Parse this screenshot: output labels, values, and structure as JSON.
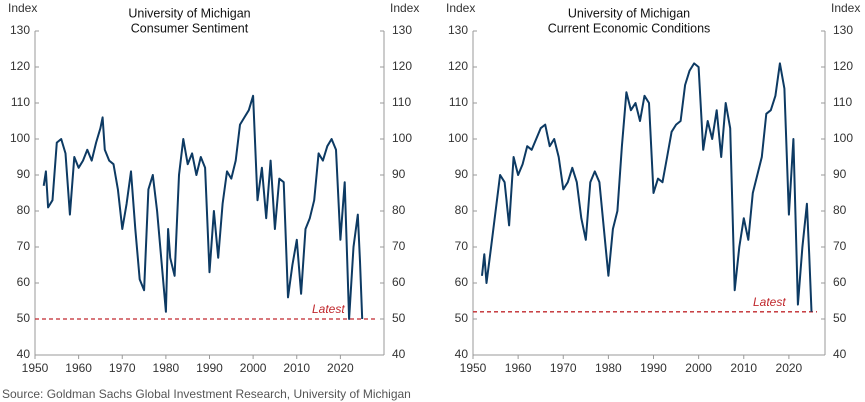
{
  "chart_data": [
    {
      "type": "line",
      "title": [
        "University of Michigan",
        "Consumer Sentiment"
      ],
      "ylabel": "Index",
      "y2label": "Index",
      "xlim": [
        1950,
        2030
      ],
      "xticks": [
        1950,
        1960,
        1970,
        1980,
        1990,
        2000,
        2010,
        2020
      ],
      "ylim": [
        40,
        130
      ],
      "yticks": [
        40,
        50,
        60,
        70,
        80,
        90,
        100,
        110,
        120,
        130
      ],
      "y2lim": [
        40,
        130
      ],
      "y2ticks": [
        40,
        50,
        60,
        70,
        80,
        90,
        100,
        110,
        120,
        130
      ],
      "x": [
        1952,
        1952.5,
        1953,
        1954,
        1955,
        1956,
        1957,
        1958,
        1959,
        1960,
        1961,
        1962,
        1963,
        1964,
        1965,
        1965.5,
        1966,
        1967,
        1968,
        1969,
        1970,
        1971,
        1972,
        1973,
        1974,
        1975,
        1976,
        1977,
        1978,
        1979,
        1980,
        1980.5,
        1981,
        1982,
        1983,
        1984,
        1985,
        1986,
        1987,
        1988,
        1989,
        1990,
        1991,
        1992,
        1993,
        1994,
        1995,
        1996,
        1997,
        1998,
        1999,
        2000,
        2001,
        2002,
        2003,
        2004,
        2005,
        2006,
        2007,
        2008,
        2009,
        2010,
        2011,
        2012,
        2013,
        2014,
        2015,
        2016,
        2017,
        2018,
        2019,
        2020,
        2021,
        2022,
        2023,
        2024,
        2024.5,
        2025
      ],
      "series": [
        {
          "color": "#0d3a63",
          "values": [
            87,
            91,
            81,
            83,
            99,
            100,
            96,
            79,
            95,
            92,
            94,
            97,
            94,
            99,
            103,
            106,
            97,
            94,
            93,
            86,
            75,
            82,
            91,
            75,
            61,
            58,
            86,
            90,
            80,
            66,
            52,
            75,
            67,
            62,
            90,
            100,
            93,
            96,
            90,
            95,
            92,
            63,
            80,
            67,
            82,
            91,
            89,
            94,
            104,
            106,
            108,
            112,
            83,
            92,
            78,
            94,
            75,
            89,
            88,
            56,
            65,
            72,
            57,
            75,
            78,
            83,
            96,
            94,
            98,
            100,
            97,
            72,
            88,
            50,
            70,
            79,
            66,
            50
          ]
        }
      ],
      "annotations": [
        {
          "text": "Latest",
          "value": 50,
          "color": "#c0282d"
        }
      ]
    },
    {
      "type": "line",
      "title": [
        "University of Michigan",
        "Current Economic Conditions"
      ],
      "ylabel": "Index",
      "y2label": "Index",
      "xlim": [
        1950,
        2028
      ],
      "xticks": [
        1950,
        1960,
        1970,
        1980,
        1990,
        2000,
        2010,
        2020
      ],
      "ylim": [
        40,
        130
      ],
      "yticks": [
        40,
        50,
        60,
        70,
        80,
        90,
        100,
        110,
        120,
        130
      ],
      "y2lim": [
        40,
        130
      ],
      "y2ticks": [
        40,
        50,
        60,
        70,
        80,
        90,
        100,
        110,
        120,
        130
      ],
      "x": [
        1952,
        1952.5,
        1953,
        1954,
        1955,
        1956,
        1957,
        1958,
        1959,
        1960,
        1961,
        1962,
        1963,
        1964,
        1965,
        1966,
        1967,
        1968,
        1969,
        1970,
        1971,
        1972,
        1973,
        1974,
        1975,
        1976,
        1977,
        1978,
        1979,
        1980,
        1981,
        1982,
        1983,
        1984,
        1985,
        1986,
        1987,
        1988,
        1989,
        1990,
        1991,
        1992,
        1993,
        1994,
        1995,
        1996,
        1997,
        1998,
        1999,
        2000,
        2001,
        2002,
        2003,
        2004,
        2005,
        2006,
        2007,
        2008,
        2009,
        2010,
        2011,
        2012,
        2013,
        2014,
        2015,
        2016,
        2017,
        2018,
        2019,
        2020,
        2021,
        2022,
        2023,
        2024,
        2024.5,
        2025
      ],
      "series": [
        {
          "color": "#0d3a63",
          "values": [
            62,
            68,
            60,
            70,
            80,
            90,
            88,
            76,
            95,
            90,
            93,
            98,
            97,
            100,
            103,
            104,
            98,
            100,
            95,
            86,
            88,
            92,
            88,
            78,
            72,
            88,
            91,
            88,
            75,
            62,
            75,
            80,
            98,
            113,
            108,
            110,
            105,
            112,
            110,
            85,
            89,
            88,
            95,
            102,
            104,
            105,
            115,
            119,
            121,
            120,
            97,
            105,
            100,
            108,
            95,
            110,
            103,
            58,
            70,
            78,
            72,
            85,
            90,
            95,
            107,
            108,
            112,
            121,
            114,
            79,
            100,
            54,
            70,
            82,
            68,
            52
          ]
        }
      ],
      "annotations": [
        {
          "text": "Latest",
          "value": 52,
          "color": "#c0282d"
        }
      ]
    }
  ],
  "source": "Source: Goldman Sachs Global Investment Research, University of Michigan"
}
